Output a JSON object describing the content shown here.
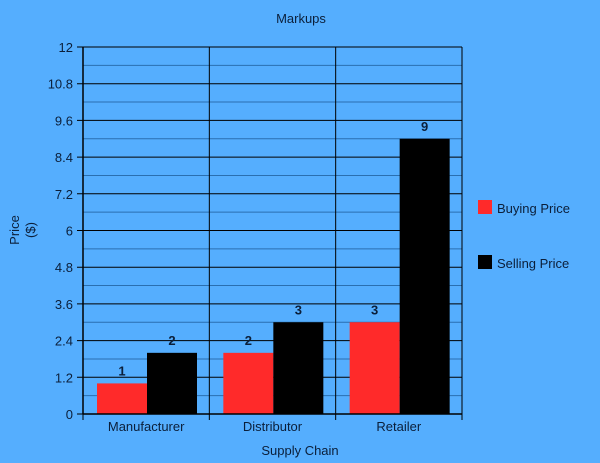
{
  "chart_data": {
    "type": "bar",
    "title": "Markups",
    "xlabel": "Supply Chain",
    "ylabel_line1": "Price",
    "ylabel_line2": "($)",
    "categories": [
      "Manufacturer",
      "Distributor",
      "Retailer"
    ],
    "series": [
      {
        "name": "Buying Price",
        "color": "#ff2a2a",
        "values": [
          1,
          2,
          3
        ]
      },
      {
        "name": "Selling Price",
        "color": "#000000",
        "values": [
          2,
          3,
          9
        ]
      }
    ],
    "ylim": [
      0,
      12
    ],
    "yticks": [
      "0",
      "1.2",
      "2.4",
      "3.6",
      "4.8",
      "6",
      "7.2",
      "8.4",
      "9.6",
      "10.8",
      "12"
    ],
    "grid": true,
    "legend_position": "right",
    "data_labels": true
  },
  "colors": {
    "background": "#55aefe",
    "major_grid": "#000000",
    "minor_grid": "#2a6fb0"
  }
}
